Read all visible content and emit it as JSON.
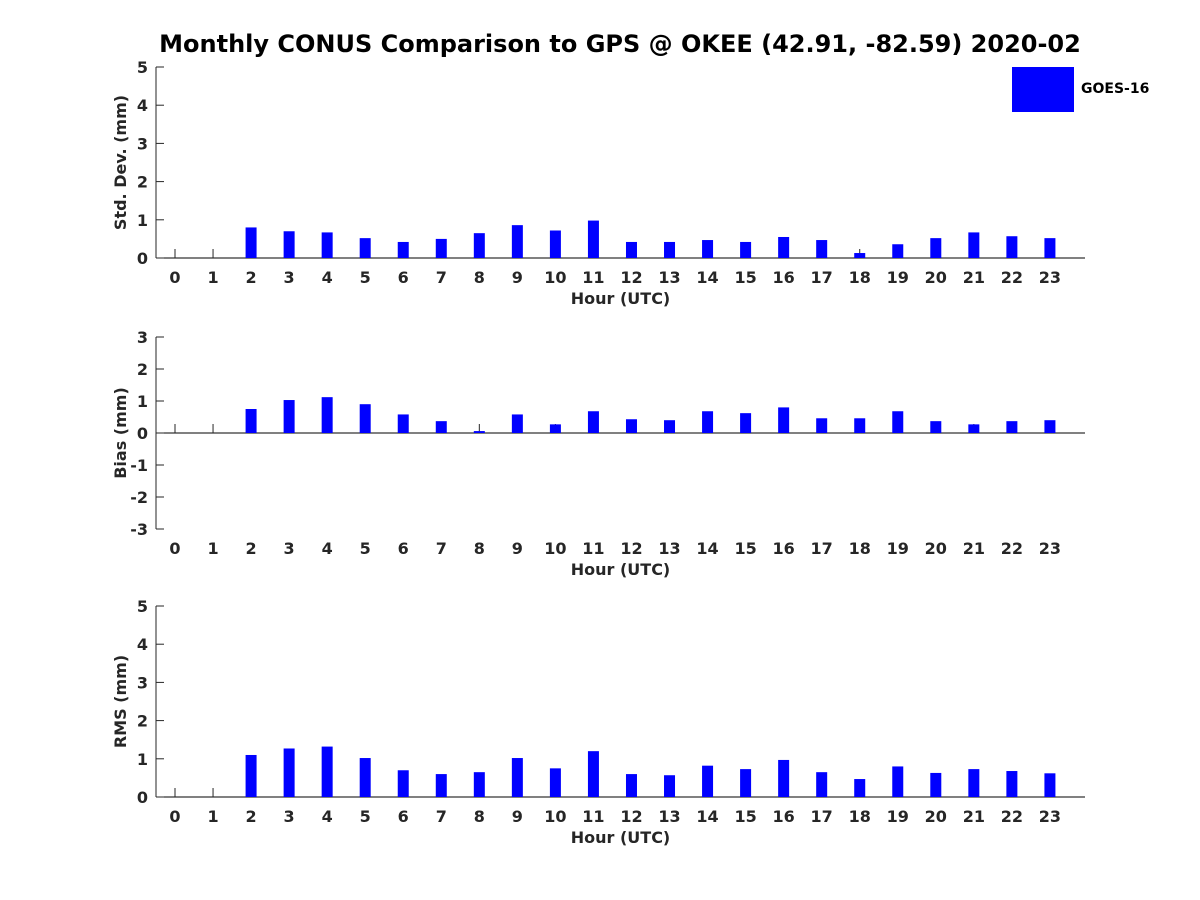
{
  "title": "Monthly CONUS Comparison to GPS @ OKEE (42.91, -82.59) 2020-02",
  "legend": {
    "label": "GOES-16",
    "color": "#0000ff"
  },
  "chart_data": [
    {
      "type": "bar",
      "name": "std-dev",
      "title": "Monthly CONUS Comparison to GPS @ OKEE (42.91, -82.59) 2020-02",
      "xlabel": "Hour (UTC)",
      "ylabel": "Std. Dev. (mm)",
      "ylim": [
        0,
        5
      ],
      "yticks": [
        0,
        1,
        2,
        3,
        4,
        5
      ],
      "categories": [
        "0",
        "1",
        "2",
        "3",
        "4",
        "5",
        "6",
        "7",
        "8",
        "9",
        "10",
        "11",
        "12",
        "13",
        "14",
        "15",
        "16",
        "17",
        "18",
        "19",
        "20",
        "21",
        "22",
        "23"
      ],
      "series": [
        {
          "name": "GOES-16",
          "values": [
            null,
            null,
            0.8,
            0.7,
            0.67,
            0.52,
            0.42,
            0.5,
            0.65,
            0.86,
            0.72,
            0.98,
            0.42,
            0.42,
            0.47,
            0.42,
            0.55,
            0.47,
            0.13,
            0.36,
            0.52,
            0.67,
            0.57,
            0.52
          ]
        }
      ]
    },
    {
      "type": "bar",
      "name": "bias",
      "xlabel": "Hour (UTC)",
      "ylabel": "Bias (mm)",
      "ylim": [
        -3,
        3
      ],
      "yticks": [
        -3,
        -2,
        -1,
        0,
        1,
        2,
        3
      ],
      "categories": [
        "0",
        "1",
        "2",
        "3",
        "4",
        "5",
        "6",
        "7",
        "8",
        "9",
        "10",
        "11",
        "12",
        "13",
        "14",
        "15",
        "16",
        "17",
        "18",
        "19",
        "20",
        "21",
        "22",
        "23"
      ],
      "series": [
        {
          "name": "GOES-16",
          "values": [
            null,
            null,
            0.75,
            1.03,
            1.12,
            0.9,
            0.58,
            0.37,
            0.06,
            0.58,
            0.27,
            0.68,
            0.43,
            0.4,
            0.68,
            0.62,
            0.8,
            0.46,
            0.46,
            0.68,
            0.37,
            0.27,
            0.37,
            0.4
          ]
        }
      ]
    },
    {
      "type": "bar",
      "name": "rms",
      "xlabel": "Hour (UTC)",
      "ylabel": "RMS (mm)",
      "ylim": [
        0,
        5
      ],
      "yticks": [
        0,
        1,
        2,
        3,
        4,
        5
      ],
      "categories": [
        "0",
        "1",
        "2",
        "3",
        "4",
        "5",
        "6",
        "7",
        "8",
        "9",
        "10",
        "11",
        "12",
        "13",
        "14",
        "15",
        "16",
        "17",
        "18",
        "19",
        "20",
        "21",
        "22",
        "23"
      ],
      "series": [
        {
          "name": "GOES-16",
          "values": [
            null,
            null,
            1.1,
            1.27,
            1.32,
            1.02,
            0.7,
            0.6,
            0.65,
            1.02,
            0.75,
            1.2,
            0.6,
            0.57,
            0.82,
            0.73,
            0.97,
            0.65,
            0.47,
            0.8,
            0.63,
            0.73,
            0.68,
            0.62
          ]
        }
      ]
    }
  ]
}
